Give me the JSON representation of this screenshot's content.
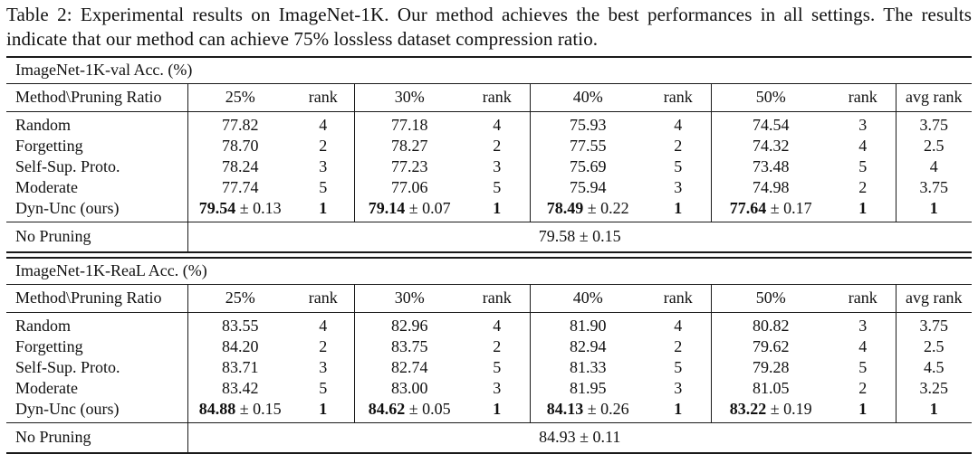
{
  "caption": "Table 2: Experimental results on ImageNet-1K. Our method achieves the best performances in all settings. The results indicate that our method can achieve 75% lossless dataset compression ratio.",
  "colors": {
    "text": "#111111",
    "rule": "#1a1a1a",
    "background": "#ffffff"
  },
  "tables": [
    {
      "section_title": "ImageNet-1K-val Acc. (%)",
      "columns": [
        "Method\\Pruning Ratio",
        "25%",
        "rank",
        "30%",
        "rank",
        "40%",
        "rank",
        "50%",
        "rank",
        "avg rank"
      ],
      "rows": [
        {
          "method": "Random",
          "highlight": false,
          "cells": [
            "77.82",
            "4",
            "77.18",
            "4",
            "75.93",
            "4",
            "74.54",
            "3",
            "3.75"
          ]
        },
        {
          "method": "Forgetting",
          "highlight": false,
          "cells": [
            "78.70",
            "2",
            "78.27",
            "2",
            "77.55",
            "2",
            "74.32",
            "4",
            "2.5"
          ]
        },
        {
          "method": "Self-Sup. Proto.",
          "highlight": false,
          "cells": [
            "78.24",
            "3",
            "77.23",
            "3",
            "75.69",
            "5",
            "73.48",
            "5",
            "4"
          ]
        },
        {
          "method": "Moderate",
          "highlight": false,
          "cells": [
            "77.74",
            "5",
            "77.06",
            "5",
            "75.94",
            "3",
            "74.98",
            "2",
            "3.75"
          ]
        },
        {
          "method": "Dyn-Unc (ours)",
          "highlight": true,
          "cells": [
            {
              "v": "79.54",
              "pm": "0.13"
            },
            "1",
            {
              "v": "79.14",
              "pm": "0.07"
            },
            "1",
            {
              "v": "78.49",
              "pm": "0.22"
            },
            "1",
            {
              "v": "77.64",
              "pm": "0.17"
            },
            "1",
            "1"
          ]
        }
      ],
      "footer": {
        "label": "No Pruning",
        "value": "79.58 ± 0.15"
      }
    },
    {
      "section_title": "ImageNet-1K-ReaL Acc. (%)",
      "columns": [
        "Method\\Pruning Ratio",
        "25%",
        "rank",
        "30%",
        "rank",
        "40%",
        "rank",
        "50%",
        "rank",
        "avg rank"
      ],
      "rows": [
        {
          "method": "Random",
          "highlight": false,
          "cells": [
            "83.55",
            "4",
            "82.96",
            "4",
            "81.90",
            "4",
            "80.82",
            "3",
            "3.75"
          ]
        },
        {
          "method": "Forgetting",
          "highlight": false,
          "cells": [
            "84.20",
            "2",
            "83.75",
            "2",
            "82.94",
            "2",
            "79.62",
            "4",
            "2.5"
          ]
        },
        {
          "method": "Self-Sup. Proto.",
          "highlight": false,
          "cells": [
            "83.71",
            "3",
            "82.74",
            "5",
            "81.33",
            "5",
            "79.28",
            "5",
            "4.5"
          ]
        },
        {
          "method": "Moderate",
          "highlight": false,
          "cells": [
            "83.42",
            "5",
            "83.00",
            "3",
            "81.95",
            "3",
            "81.05",
            "2",
            "3.25"
          ]
        },
        {
          "method": "Dyn-Unc (ours)",
          "highlight": true,
          "cells": [
            {
              "v": "84.88",
              "pm": "0.15"
            },
            "1",
            {
              "v": "84.62",
              "pm": "0.05"
            },
            "1",
            {
              "v": "84.13",
              "pm": "0.26"
            },
            "1",
            {
              "v": "83.22",
              "pm": "0.19"
            },
            "1",
            "1"
          ]
        }
      ],
      "footer": {
        "label": "No Pruning",
        "value": "84.93 ± 0.11"
      }
    }
  ]
}
